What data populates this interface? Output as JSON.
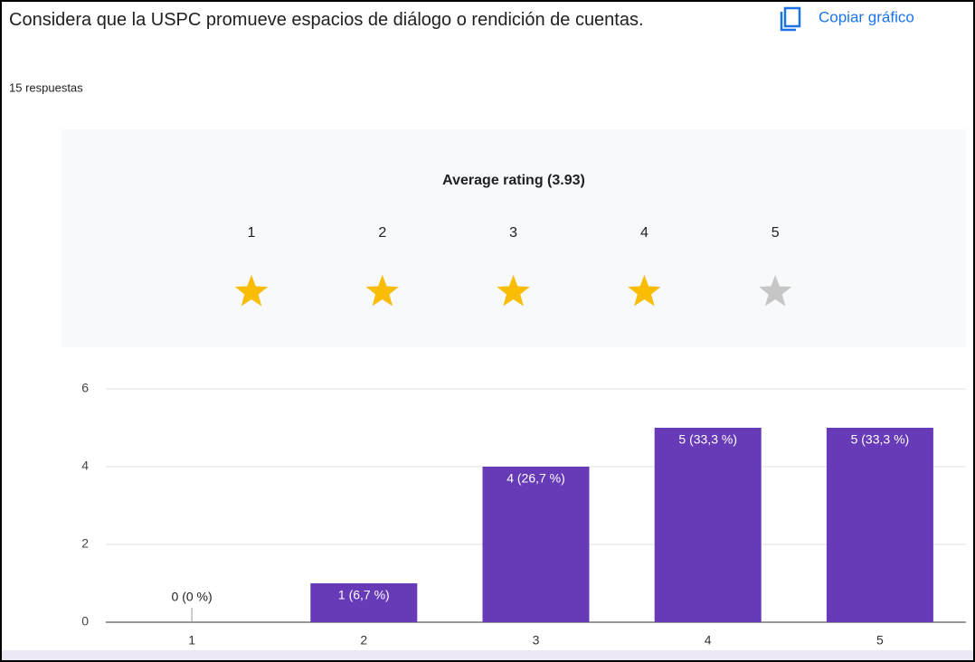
{
  "header": {
    "title": "Considera que la USPC promueve espacios de diálogo o rendición de cuentas.",
    "responses": "15 respuestas",
    "copy": "Copiar gráfico"
  },
  "rating": {
    "title": "Average rating (3.93)",
    "average": 3.93,
    "stars": [
      1,
      2,
      3,
      4,
      5
    ],
    "filled_color": "#fbbc04",
    "empty_color": "#c6c6c6"
  },
  "chart_data": {
    "type": "bar",
    "categories": [
      "1",
      "2",
      "3",
      "4",
      "5"
    ],
    "values": [
      0,
      1,
      4,
      5,
      5
    ],
    "value_labels": [
      "0 (0 %)",
      "1 (6,7 %)",
      "4 (26,7 %)",
      "5 (33,3 %)",
      "5 (33,3 %)"
    ],
    "color": "#673ab7",
    "ylim": [
      0,
      6
    ],
    "yticks": [
      0,
      2,
      4,
      6
    ],
    "grid": true
  }
}
